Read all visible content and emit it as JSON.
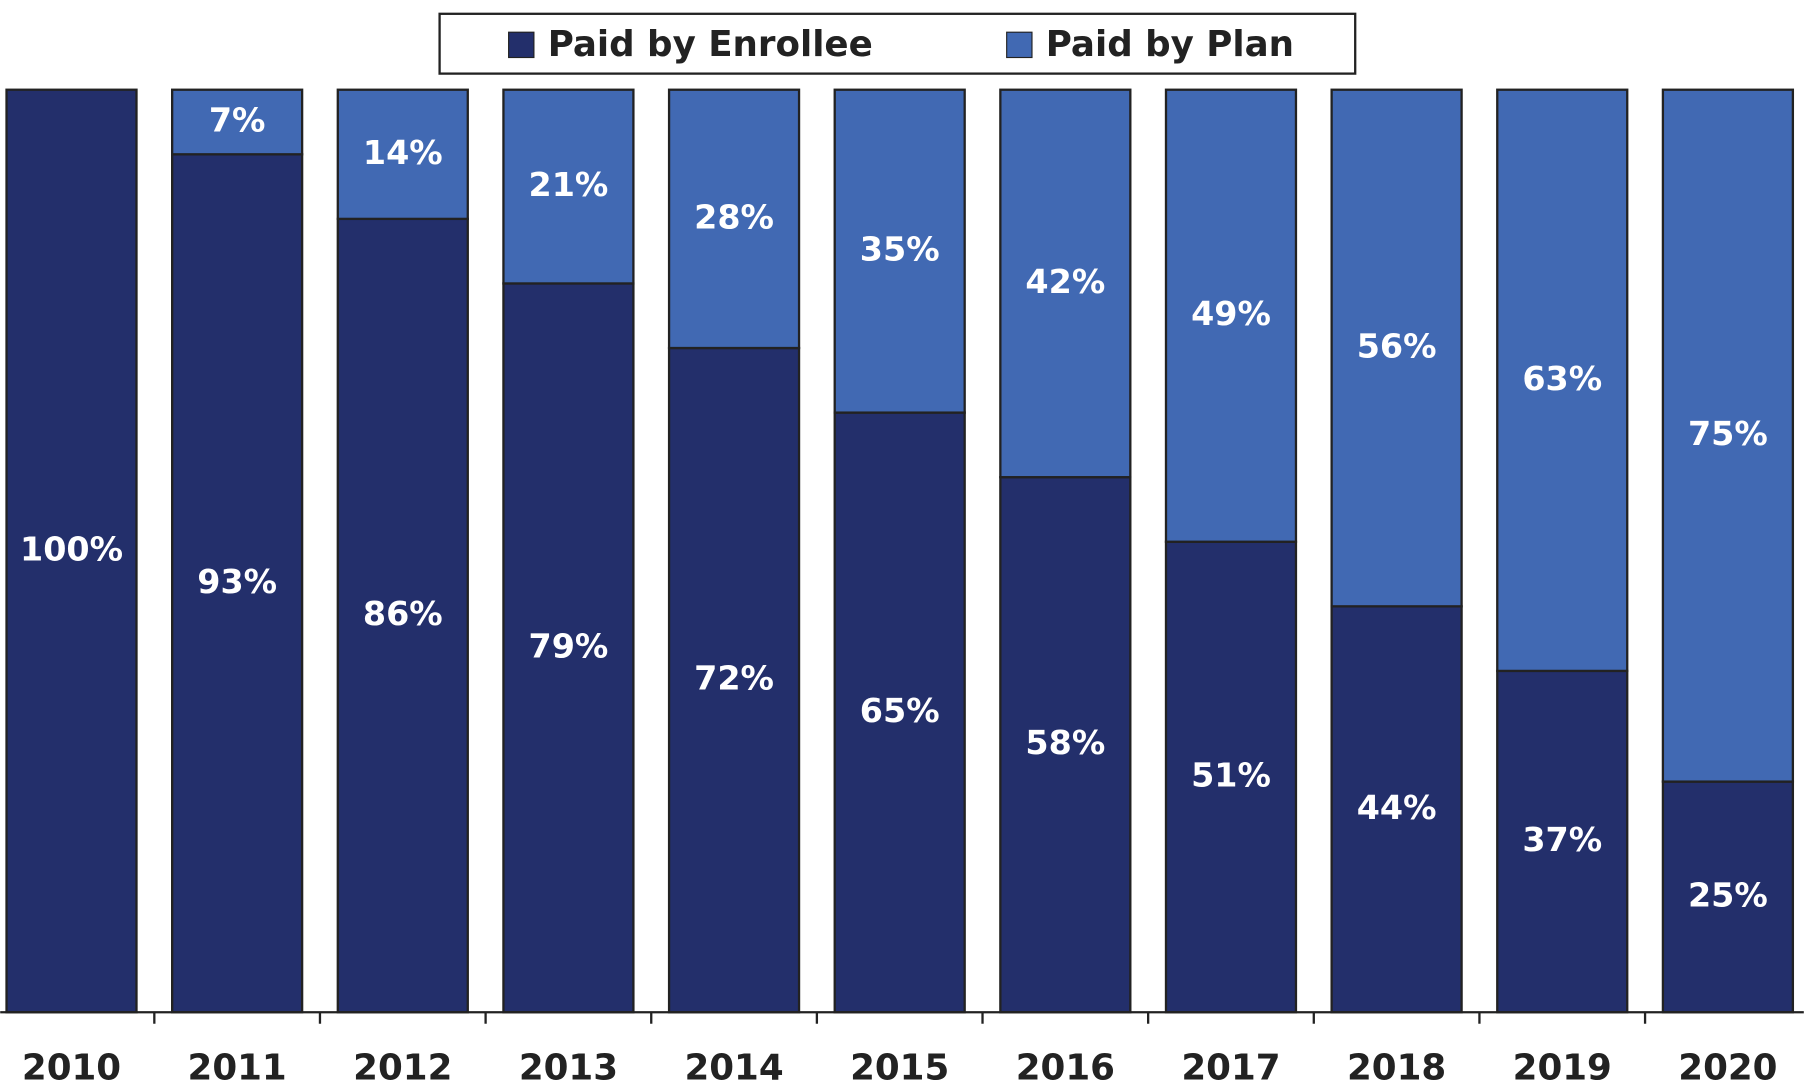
{
  "chart_data": {
    "type": "stacked_bar",
    "categories": [
      "2010",
      "2011",
      "2012",
      "2013",
      "2014",
      "2015",
      "2016",
      "2017",
      "2018",
      "2019",
      "2020"
    ],
    "series": [
      {
        "name": "Paid by Enrollee",
        "color": "#232f6b",
        "values": [
          100,
          93,
          86,
          79,
          72,
          65,
          58,
          51,
          44,
          37,
          25
        ],
        "value_labels": [
          "100%",
          "93%",
          "86%",
          "79%",
          "72%",
          "65%",
          "58%",
          "51%",
          "44%",
          "37%",
          "25%"
        ]
      },
      {
        "name": "Paid by Plan",
        "color": "#4169b3",
        "values": [
          0,
          7,
          14,
          21,
          28,
          35,
          42,
          49,
          56,
          63,
          75
        ],
        "value_labels": [
          null,
          "7%",
          "14%",
          "21%",
          "28%",
          "35%",
          "42%",
          "49%",
          "56%",
          "63%",
          "75%"
        ]
      }
    ],
    "ylim": [
      0,
      100
    ],
    "legend": "top"
  }
}
